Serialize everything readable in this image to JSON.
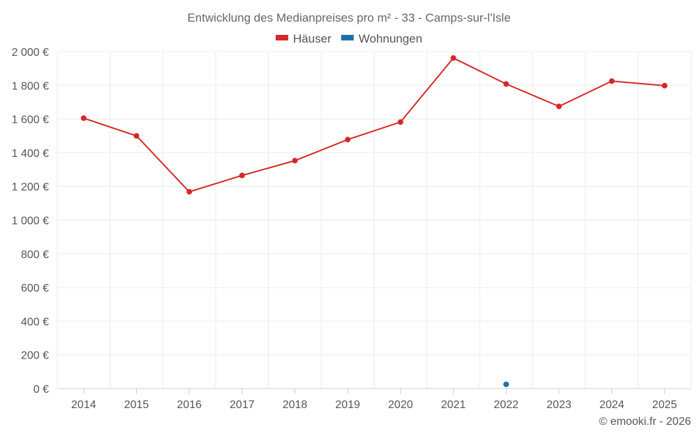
{
  "chart_data": {
    "type": "line",
    "title": "Entwicklung des Medianpreises pro m² - 33 - Camps-sur-l'Isle",
    "categories": [
      "2014",
      "2015",
      "2016",
      "2017",
      "2018",
      "2019",
      "2020",
      "2021",
      "2022",
      "2023",
      "2024",
      "2025"
    ],
    "series": [
      {
        "name": "Häuser",
        "color": "#d62728",
        "values": [
          1605,
          1500,
          1168,
          1265,
          1353,
          1478,
          1582,
          1962,
          1808,
          1675,
          1825,
          1798
        ]
      },
      {
        "name": "Wohnungen",
        "color": "#1f6fa8",
        "values": [
          null,
          null,
          null,
          null,
          null,
          null,
          null,
          null,
          25,
          null,
          null,
          null
        ]
      }
    ],
    "ylim": [
      0,
      2000
    ],
    "yticks": [
      0,
      200,
      400,
      600,
      800,
      1000,
      1200,
      1400,
      1600,
      1800,
      2000
    ],
    "ytick_labels": [
      "0 €",
      "200 €",
      "400 €",
      "600 €",
      "800 €",
      "1 000 €",
      "1 200 €",
      "1 400 €",
      "1 600 €",
      "1 800 €",
      "2 000 €"
    ],
    "grid": true,
    "legend": "top-center"
  },
  "credit": "© emooki.fr - 2026"
}
